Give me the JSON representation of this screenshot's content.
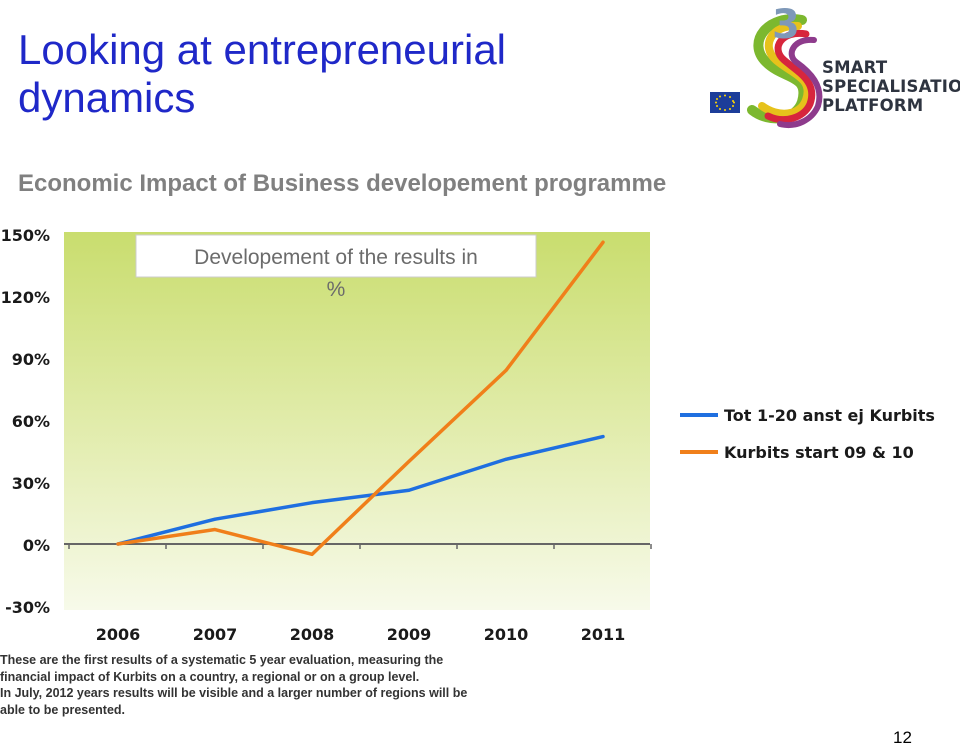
{
  "slide": {
    "title_lines": [
      "Looking at entrepreneurial",
      "dynamics"
    ],
    "subtitle": "Economic Impact of Business developement programme",
    "page_number": "12",
    "colors": {
      "title": "#1f28c8",
      "subtitle": "#808080"
    }
  },
  "logo": {
    "mark": "3",
    "lines": [
      "SMART",
      "SPECIALISATION",
      "PLATFORM"
    ],
    "flag": "eu-flag-icon"
  },
  "caption": {
    "lines": [
      "These are the first results of a systematic 5 year evaluation, measuring the",
      "financial impact of Kurbits on a country, a regional or on  a group level.",
      "In July, 2012 years results will be visible and a larger number of regions will be",
      "able to be presented."
    ]
  },
  "chart_data": {
    "type": "line",
    "title_lines": [
      "Developement of the results in",
      "%"
    ],
    "categories": [
      "2006",
      "2007",
      "2008",
      "2009",
      "2010",
      "2011"
    ],
    "ylim": [
      -30,
      150
    ],
    "yticks": [
      -30,
      0,
      30,
      60,
      90,
      120,
      150
    ],
    "ytick_labels": [
      "-30%",
      "0%",
      "30%",
      "60%",
      "90%",
      "120%",
      "150%"
    ],
    "grid": false,
    "legend_position": "right",
    "series": [
      {
        "name": "Tot 1-20 anst ej Kurbits",
        "color": "#1f6fe0",
        "values": [
          0,
          12,
          20,
          26,
          41,
          52
        ]
      },
      {
        "name": "Kurbits start 09 & 10",
        "color": "#f07f1a",
        "values": [
          0,
          7,
          -5,
          40,
          84,
          146
        ]
      }
    ]
  }
}
